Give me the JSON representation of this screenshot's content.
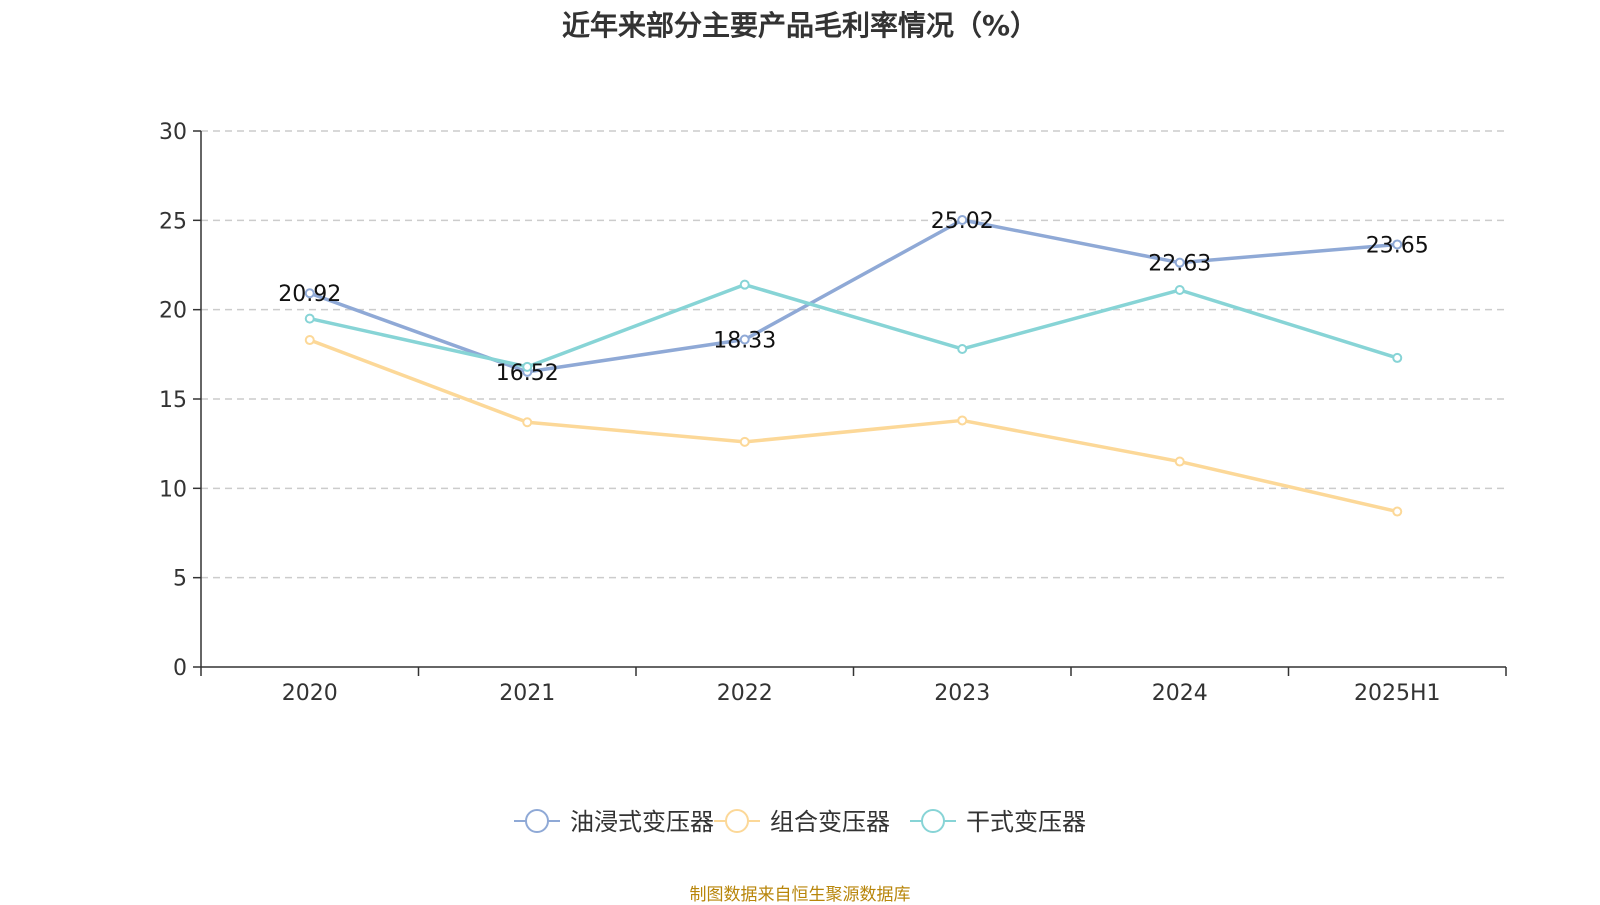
{
  "chart_data": {
    "type": "line",
    "title": "近年来部分主要产品毛利率情况（%）",
    "categories": [
      "2020",
      "2021",
      "2022",
      "2023",
      "2024",
      "2025H1"
    ],
    "ylim": [
      0,
      30
    ],
    "yticks": [
      0,
      5,
      10,
      15,
      20,
      25,
      30
    ],
    "grid": "horizontal-dashed",
    "legend_position": "bottom-center",
    "series": [
      {
        "name": "油浸式变压器",
        "color": "#8fa9d6",
        "values": [
          20.92,
          16.52,
          18.33,
          25.02,
          22.63,
          23.65
        ],
        "labels": [
          "20.92",
          "16.52",
          "18.33",
          "25.02",
          "22.63",
          "23.65"
        ]
      },
      {
        "name": "组合变压器",
        "color": "#fcd898",
        "values": [
          18.3,
          13.7,
          12.6,
          13.8,
          11.5,
          8.7
        ]
      },
      {
        "name": "干式变压器",
        "color": "#87d4d6",
        "values": [
          19.5,
          16.8,
          21.4,
          17.8,
          21.1,
          17.3
        ]
      }
    ],
    "source_note": "制图数据来自恒生聚源数据库"
  }
}
